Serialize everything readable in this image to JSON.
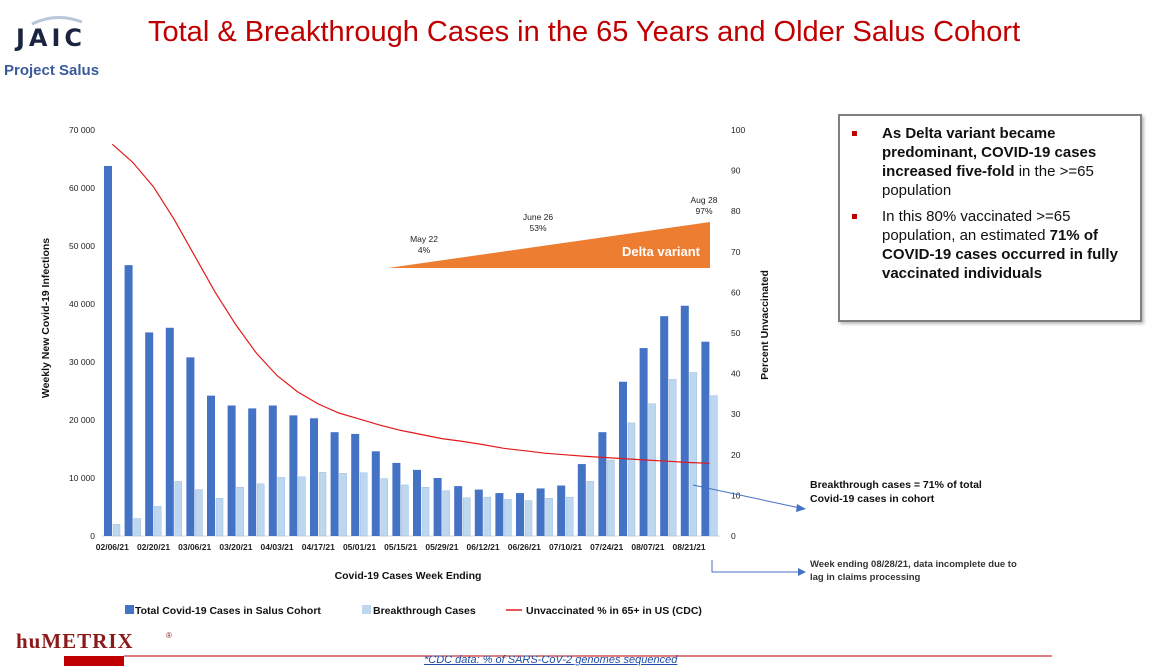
{
  "header": {
    "logo_text": "JAIC",
    "logo_subtitle": "Project Salus",
    "title": "Total & Breakthrough Cases in the 65 Years and Older Salus Cohort"
  },
  "chart_data": {
    "type": "bar",
    "title": "",
    "xlabel": "Covid-19 Cases Week Ending",
    "ylabel": "Weekly New Covid-19 Infections",
    "y2label": "Percent Unvaccinated",
    "ylim": [
      0,
      70000
    ],
    "y2lim": [
      0,
      100
    ],
    "yticks": [
      "0",
      "10 000",
      "20 000",
      "30 000",
      "40 000",
      "50 000",
      "60 000",
      "70 000"
    ],
    "y2ticks": [
      "0",
      "10",
      "20",
      "30",
      "40",
      "50",
      "60",
      "70",
      "80",
      "90",
      "100"
    ],
    "grid": false,
    "legend_position": "bottom",
    "xtick_labels": [
      "02/06/21",
      "02/20/21",
      "03/06/21",
      "03/20/21",
      "04/03/21",
      "04/17/21",
      "05/01/21",
      "05/15/21",
      "05/29/21",
      "06/12/21",
      "06/26/21",
      "07/10/21",
      "07/24/21",
      "08/07/21",
      "08/21/21"
    ],
    "categories": [
      "02/06/21",
      "02/13/21",
      "02/20/21",
      "02/27/21",
      "03/06/21",
      "03/13/21",
      "03/20/21",
      "03/27/21",
      "04/03/21",
      "04/10/21",
      "04/17/21",
      "04/24/21",
      "05/01/21",
      "05/08/21",
      "05/15/21",
      "05/22/21",
      "05/29/21",
      "06/05/21",
      "06/12/21",
      "06/19/21",
      "06/26/21",
      "07/03/21",
      "07/10/21",
      "07/17/21",
      "07/24/21",
      "07/31/21",
      "08/07/21",
      "08/14/21",
      "08/21/21",
      "08/28/21"
    ],
    "series": [
      {
        "name": "Total Covid-19 Cases in Salus Cohort",
        "type": "bar",
        "axis": "left",
        "color": "#4472c4",
        "values": [
          63800,
          46700,
          35100,
          35900,
          30800,
          24200,
          22500,
          22000,
          22500,
          20800,
          20300,
          17900,
          17600,
          14600,
          12600,
          11400,
          10000,
          8600,
          8000,
          7400,
          7400,
          8200,
          8700,
          12400,
          17900,
          26600,
          32400,
          37900,
          39700,
          33500
        ]
      },
      {
        "name": "Breakthrough Cases",
        "type": "bar",
        "axis": "left",
        "color": "#bdd7ee",
        "values": [
          2000,
          3000,
          5100,
          9400,
          8000,
          6500,
          8400,
          9000,
          10100,
          10200,
          11000,
          10800,
          10900,
          9900,
          8800,
          8400,
          7800,
          6600,
          6700,
          6300,
          6100,
          6500,
          6700,
          9400,
          13100,
          19500,
          22800,
          27000,
          28200,
          24200
        ]
      },
      {
        "name": "Unvaccinated % in 65+ in US (CDC)",
        "type": "line",
        "axis": "right",
        "color": "#e31a1c",
        "values": [
          96.5,
          92,
          86,
          78,
          69,
          60,
          52,
          45,
          39.5,
          35.5,
          32.5,
          30.3,
          28.8,
          27.3,
          26,
          25,
          24,
          23.3,
          22.5,
          21.6,
          21,
          20.4,
          20,
          19.6,
          19.3,
          19.0,
          18.7,
          18.4,
          18.1,
          17.9
        ]
      }
    ],
    "annotations": {
      "delta_label": "Delta variant",
      "delta_color": "#ed7d31",
      "points": [
        {
          "date": "May 22",
          "pct": "4%"
        },
        {
          "date": "June 26",
          "pct": "53%"
        },
        {
          "date": "Aug 28",
          "pct": "97%"
        }
      ]
    }
  },
  "info_box": {
    "bullet1_part1": "As Delta variant became predominant, COVID-19 cases increased five-fold",
    "bullet1_part2": " in the >=65 population",
    "bullet2_part1": "In this 80% vaccinated >=65 population, an estimated ",
    "bullet2_part2": "71% of COVID-19 cases occurred in fully vaccinated individuals"
  },
  "notes": {
    "breakthrough": "Breakthrough cases = 71% of total Covid-19 cases in cohort",
    "week_end": "Week ending 08/28/21, data incomplete due to lag in claims processing"
  },
  "footer": {
    "logo_text": "huMETRIX",
    "logo_mark": "®",
    "footnote": "*CDC data: % of SARS-CoV-2 genomes sequenced"
  },
  "colors": {
    "title": "#c00000",
    "accent_blue": "#4472c4",
    "footer_red": "#c00000"
  }
}
